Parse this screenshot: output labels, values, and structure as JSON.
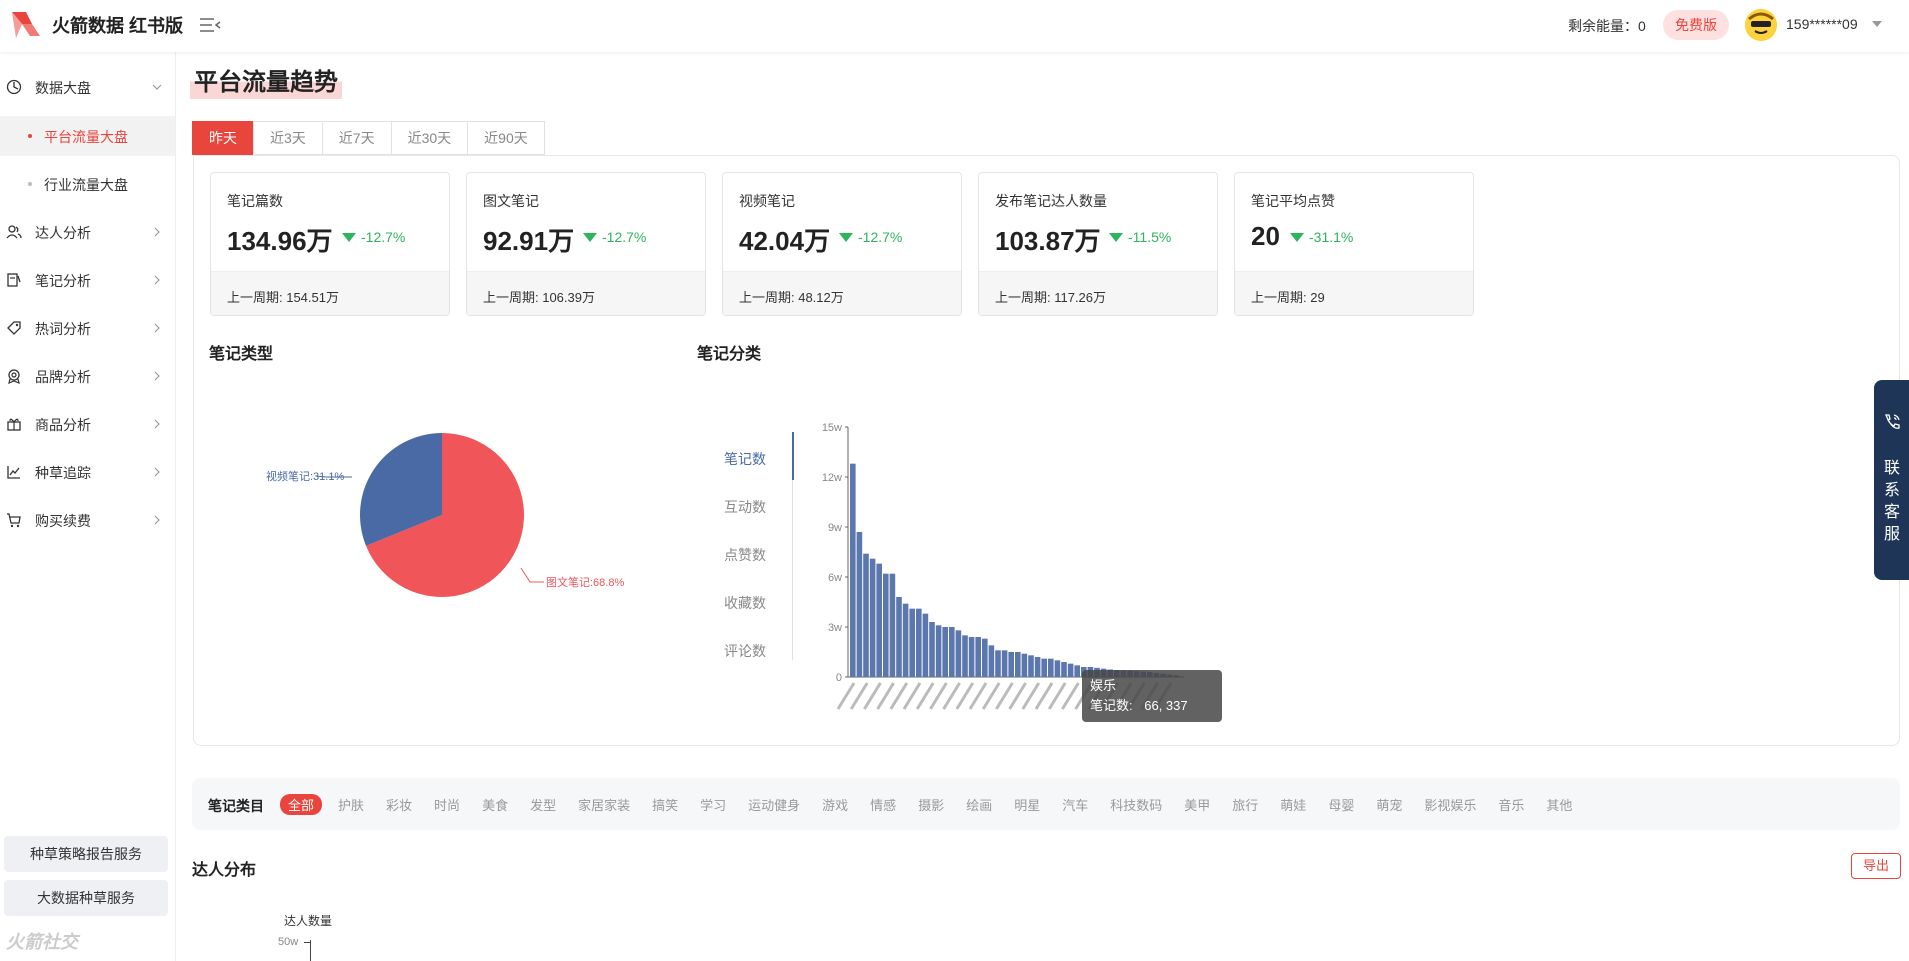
{
  "header": {
    "app_title": "火箭数据 红书版",
    "energy_text": "剩余能量：0",
    "plan_badge": "免费版",
    "user_name": "159******09"
  },
  "sidebar": {
    "items": [
      {
        "label": "数据大盘",
        "icon": "pie-chart-icon",
        "expanded": true
      },
      {
        "label": "达人分析",
        "icon": "user-group-icon"
      },
      {
        "label": "笔记分析",
        "icon": "note-icon"
      },
      {
        "label": "热词分析",
        "icon": "tag-icon"
      },
      {
        "label": "品牌分析",
        "icon": "brand-badge-icon"
      },
      {
        "label": "商品分析",
        "icon": "gift-box-icon"
      },
      {
        "label": "种草追踪",
        "icon": "trend-line-icon"
      },
      {
        "label": "购买续费",
        "icon": "cart-icon"
      }
    ],
    "sub_items": [
      {
        "label": "平台流量大盘",
        "active": true
      },
      {
        "label": "行业流量大盘",
        "active": false
      }
    ],
    "bottom_buttons": [
      "种草策略报告服务",
      "大数据种草服务"
    ],
    "watermark": "火箭社交"
  },
  "main": {
    "page_title": "平台流量趋势",
    "tabs": [
      {
        "label": "昨天",
        "active": true
      },
      {
        "label": "近3天"
      },
      {
        "label": "近7天"
      },
      {
        "label": "近30天"
      },
      {
        "label": "近90天"
      }
    ],
    "metrics": [
      {
        "label": "笔记篇数",
        "value": "134.96万",
        "change": "-12.7%",
        "prev": "上一周期: 154.51万"
      },
      {
        "label": "图文笔记",
        "value": "92.91万",
        "change": "-12.7%",
        "prev": "上一周期: 106.39万"
      },
      {
        "label": "视频笔记",
        "value": "42.04万",
        "change": "-12.7%",
        "prev": "上一周期: 48.12万"
      },
      {
        "label": "发布笔记达人数量",
        "value": "103.87万",
        "change": "-11.5%",
        "prev": "上一周期: 117.26万"
      },
      {
        "label": "笔记平均点赞",
        "value": "20",
        "change": "-31.1%",
        "prev": "上一周期: 29"
      }
    ],
    "note_type_title": "笔记类型",
    "note_category_title": "笔记分类",
    "metric_selector": [
      "笔记数",
      "互动数",
      "点赞数",
      "收藏数",
      "评论数"
    ],
    "tooltip": {
      "name": "娱乐",
      "label": "笔记数:",
      "value": "66, 337"
    },
    "category_bar": {
      "label": "笔记类目",
      "items": [
        "全部",
        "护肤",
        "彩妆",
        "时尚",
        "美食",
        "发型",
        "家居家装",
        "搞笑",
        "学习",
        "运动健身",
        "游戏",
        "情感",
        "摄影",
        "绘画",
        "明星",
        "汽车",
        "科技数码",
        "美甲",
        "旅行",
        "萌娃",
        "母婴",
        "萌宠",
        "影视娱乐",
        "音乐",
        "其他"
      ]
    },
    "distribution": {
      "title": "达人分布",
      "export_label": "导出",
      "ylabel": "达人数量",
      "first_tick": "50w"
    },
    "float_service": "联系客服"
  },
  "chart_data": [
    {
      "type": "pie",
      "title": "笔记类型",
      "labels": [
        "图文笔记",
        "视频笔记"
      ],
      "values": [
        68.8,
        31.1
      ],
      "slice_labels": [
        "图文笔记:68.8%",
        "视频笔记:31.1%"
      ],
      "colors": [
        "#f0555a",
        "#4a6aa5"
      ]
    },
    {
      "type": "bar",
      "title": "笔记分类",
      "series": [
        {
          "values": [
            128000,
            87000,
            74000,
            71000,
            68000,
            62000,
            62000,
            48000,
            44000,
            41000,
            41000,
            38000,
            33000,
            31000,
            30000,
            30000,
            28000,
            25000,
            24000,
            24000,
            23000,
            19000,
            16000,
            16000,
            15000,
            15000,
            14000,
            13000,
            12000,
            11000,
            11000,
            10000,
            9000,
            8000,
            7000,
            6000,
            6000,
            5500,
            5000,
            4500,
            4200,
            4000,
            3800,
            3500,
            3200,
            3000,
            2500,
            2000,
            1500,
            1000
          ]
        }
      ],
      "ylim": [
        0,
        150000
      ],
      "yticks": [
        "0",
        "3w",
        "6w",
        "9w",
        "12w",
        "15w"
      ],
      "color": "#5b77ad"
    }
  ],
  "colors": {
    "accent": "#e8453c",
    "pie_red": "#f0555a",
    "pie_blue": "#4a6aa5",
    "down": "#2db55d",
    "service": "#1e3557"
  }
}
